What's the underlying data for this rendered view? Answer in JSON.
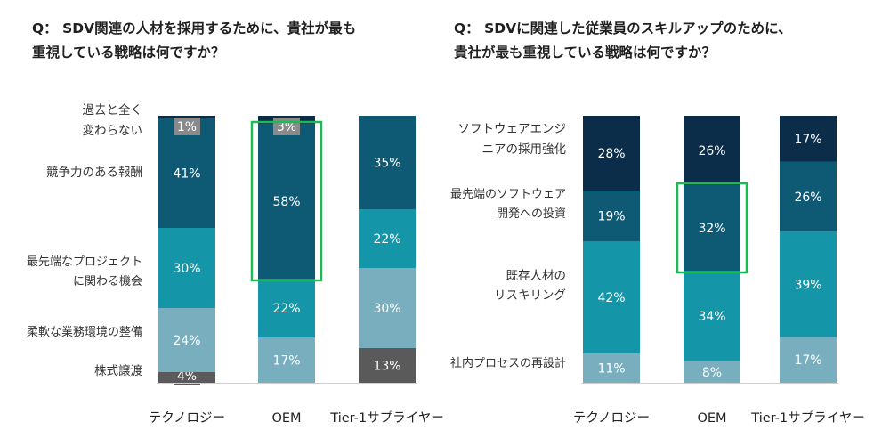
{
  "colors": {
    "navy": "#0b2d4a",
    "dark_teal": "#0e5a74",
    "teal": "#1496a8",
    "light_teal": "#78aebe",
    "gray": "#5a5a5a",
    "label_gray": "#8a8a8a",
    "highlight": "#1db954"
  },
  "chart_data": [
    {
      "type": "bar",
      "stacked": true,
      "title": [
        "Q： SDV関連の人材を採用するために、貴社が最も",
        "重視している戦略は何ですか？"
      ],
      "categories": [
        "テクノロジー",
        "OEM",
        "Tier-1サプライヤー"
      ],
      "series": [
        {
          "name": "株式譲渡",
          "values": [
            4,
            0,
            13
          ],
          "color": "gray"
        },
        {
          "name": "柔軟な業務環境の整備",
          "values": [
            24,
            17,
            30
          ],
          "color": "light_teal"
        },
        {
          "name": "最先端なプロジェクトに関わる機会",
          "values": [
            30,
            22,
            22
          ],
          "color": "teal"
        },
        {
          "name": "競争力のある報酬",
          "values": [
            41,
            58,
            35
          ],
          "color": "dark_teal"
        },
        {
          "name": "過去と全く変わらない",
          "values": [
            1,
            3,
            0
          ],
          "color": "navy"
        }
      ],
      "series_labels": [
        [
          "株式譲渡"
        ],
        [
          "柔軟な業務環境の整備"
        ],
        [
          "最先端なプロジェクト",
          "に関わる機会"
        ],
        [
          "競争力のある報酬"
        ],
        [
          "過去と全く",
          "変わらない"
        ]
      ],
      "data_labels": [
        [
          "4%",
          "",
          "13%"
        ],
        [
          "24%",
          "17%",
          "30%"
        ],
        [
          "30%",
          "22%",
          "22%"
        ],
        [
          "41%",
          "58%",
          "35%"
        ],
        [
          "1%",
          "3%",
          ""
        ]
      ],
      "highlight": {
        "category": 1,
        "series": 3
      }
    },
    {
      "type": "bar",
      "stacked": true,
      "title": [
        "Q： SDVに関連した従業員のスキルアップのために、",
        "貴社が最も重視している戦略は何ですか？"
      ],
      "categories": [
        "テクノロジー",
        "OEM",
        "Tier-1サプライヤー"
      ],
      "series": [
        {
          "name": "社内プロセスの再設計",
          "values": [
            11,
            8,
            17
          ],
          "color": "light_teal"
        },
        {
          "name": "既存人材のリスキリング",
          "values": [
            42,
            34,
            39
          ],
          "color": "teal"
        },
        {
          "name": "最先端のソフトウェア開発への投資",
          "values": [
            19,
            32,
            26
          ],
          "color": "dark_teal"
        },
        {
          "name": "ソフトウェアエンジニアの採用強化",
          "values": [
            28,
            26,
            17
          ],
          "color": "navy"
        }
      ],
      "series_labels": [
        [
          "社内プロセスの再設計"
        ],
        [
          "既存人材の",
          "リスキリング"
        ],
        [
          "最先端のソフトウェア",
          "開発への投資"
        ],
        [
          "ソフトウェアエンジ",
          "ニアの採用強化"
        ]
      ],
      "data_labels": [
        [
          "11%",
          "8%",
          "17%"
        ],
        [
          "42%",
          "34%",
          "39%"
        ],
        [
          "19%",
          "32%",
          "26%"
        ],
        [
          "28%",
          "26%",
          "17%"
        ]
      ],
      "highlight": {
        "category": 1,
        "series": 2
      }
    }
  ]
}
